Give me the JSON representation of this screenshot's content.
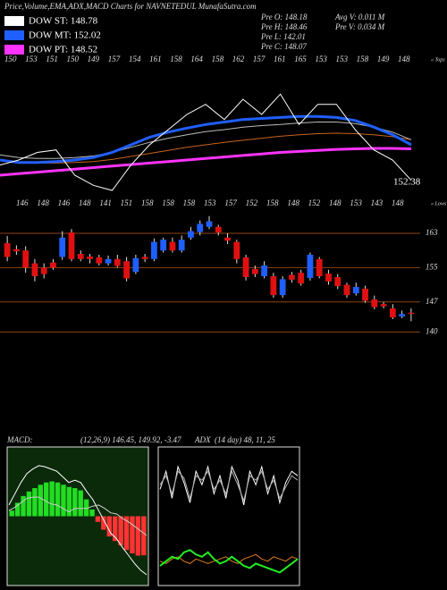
{
  "header": {
    "title": "Price,Volume,EMA,ADX,MACD Charts for NAVNETEDUL MunafaSutra.com",
    "legend": [
      {
        "label": "DOW ST: 148.78",
        "color": "#ffffff"
      },
      {
        "label": "DOW MT: 152.02",
        "color": "#1f5fff"
      },
      {
        "label": "DOW PT: 148.52",
        "color": "#ff33ff"
      }
    ],
    "info_left": [
      "Pre  O: 148.18",
      "Pre  H: 148.46",
      "Pre  L: 142.01",
      "Pre  C: 148.07"
    ],
    "info_right": [
      "Avg V: 0.011  M",
      "Pre  V: 0.034  M"
    ]
  },
  "chart_data": [
    {
      "type": "line",
      "tops": [
        "150",
        "153",
        "151",
        "150",
        "149",
        "157",
        "154",
        "161",
        "158",
        "164",
        "158",
        "162",
        "157",
        "161",
        "165",
        "153",
        "153",
        "158",
        "149",
        "148"
      ],
      "tops_caption": "« Tops",
      "lows": [
        "146",
        "148",
        "146",
        "148",
        "141",
        "151",
        "158",
        "158",
        "158",
        "153",
        "157",
        "152",
        "158",
        "148",
        "152",
        "148",
        "153",
        "143",
        "148"
      ],
      "lows_caption": "« Lows",
      "last_label": "152.38",
      "ylim": [
        140,
        170
      ],
      "series": [
        {
          "color": "#ff33ff",
          "width": 3,
          "values": [
            146,
            146.3,
            146.6,
            146.9,
            147.2,
            147.5,
            147.8,
            148.1,
            148.4,
            148.7,
            149,
            149.3,
            149.6,
            149.9,
            150.2,
            150.5,
            150.7,
            150.9,
            151.1,
            151.2,
            151.3,
            151.3,
            151.2
          ]
        },
        {
          "color": "#c8641e",
          "width": 1,
          "values": [
            149,
            148.6,
            148.4,
            148.4,
            148.5,
            148.7,
            149.1,
            149.7,
            150.3,
            150.9,
            151.5,
            152,
            152.5,
            152.9,
            153.3,
            153.7,
            154,
            154.2,
            154.3,
            154.2,
            154,
            153.6,
            153
          ]
        },
        {
          "color": "#bbbbbb",
          "width": 1,
          "values": [
            150,
            149.5,
            149.3,
            149.3,
            149.5,
            149.8,
            150.5,
            151.5,
            152.5,
            153.3,
            154,
            154.6,
            155,
            155.5,
            155.8,
            156,
            156.3,
            156.5,
            156.5,
            156.2,
            155.5,
            154.5,
            153
          ]
        },
        {
          "color": "#1f5fff",
          "width": 3,
          "values": [
            149,
            148.5,
            148.5,
            148.7,
            149,
            149.5,
            150.5,
            152,
            153.5,
            154.5,
            155.3,
            156,
            156.5,
            157,
            157.2,
            157.4,
            157.6,
            157.6,
            157.4,
            156.8,
            155.5,
            154,
            152
          ]
        },
        {
          "color": "#ffffff",
          "width": 1,
          "values": [
            148,
            149,
            150.5,
            151,
            146,
            144,
            143,
            148,
            152,
            155,
            158,
            160,
            157,
            161,
            158,
            162,
            156,
            160,
            160,
            155,
            151,
            149,
            145
          ]
        }
      ]
    },
    {
      "type": "candlestick",
      "up_color": "#1f5fff",
      "down_color": "#e01010",
      "ylim": [
        136,
        168
      ],
      "yticks": [
        140,
        147,
        155,
        163
      ],
      "grid": true,
      "open": [
        160.7,
        159.3,
        159.0,
        156.0,
        155.0,
        156.2,
        157.5,
        163.2,
        158.2,
        157.6,
        157.4,
        156.0,
        157.0,
        156.5,
        154.0,
        157.5,
        157.0,
        159.0,
        161.0,
        159.0,
        162.0,
        163.3,
        164.5,
        164.5,
        162.0,
        161.0,
        157.4,
        154.7,
        153.0,
        153.0,
        148.6,
        153.3,
        153.8,
        152.6,
        157.0,
        153.6,
        152.8,
        151.0,
        149.0,
        150.1,
        147.6,
        146.5,
        145.5,
        143.6,
        144.5
      ],
      "high": [
        162.4,
        160.2,
        160.0,
        157.0,
        156.0,
        157.0,
        163.5,
        164.0,
        159.0,
        158.2,
        158.0,
        157.8,
        158.0,
        157.5,
        158.0,
        158.2,
        161.8,
        162.0,
        162.0,
        162.5,
        164.5,
        166.0,
        167.0,
        165.0,
        163.0,
        161.5,
        158.0,
        155.5,
        156.5,
        153.8,
        153.0,
        154.0,
        154.5,
        158.5,
        157.5,
        154.5,
        153.5,
        151.5,
        151.5,
        150.8,
        148.5,
        147.0,
        146.5,
        145.0,
        145.5
      ],
      "low": [
        156.5,
        158.0,
        153.8,
        151.8,
        152.5,
        154.5,
        156.8,
        156.5,
        156.5,
        156.0,
        155.5,
        155.5,
        155.0,
        151.8,
        153.5,
        156.3,
        156.5,
        158.5,
        158.5,
        158.5,
        161.5,
        162.5,
        164.0,
        162.5,
        160.5,
        156.0,
        152.0,
        152.8,
        152.5,
        148.0,
        148.0,
        151.5,
        150.8,
        152.0,
        152.5,
        151.0,
        150.0,
        148.0,
        148.5,
        146.8,
        145.3,
        145.5,
        143.0,
        143.2,
        142.5
      ],
      "close": [
        157.5,
        158.8,
        155.0,
        153.0,
        153.5,
        155.0,
        162.0,
        157.0,
        157.0,
        157.0,
        156.0,
        157.0,
        155.4,
        152.5,
        157.2,
        157.0,
        161.0,
        161.5,
        159.0,
        161.5,
        163.5,
        165.2,
        165.8,
        163.2,
        161.3,
        157.0,
        152.8,
        153.5,
        155.5,
        148.6,
        152.3,
        152.2,
        151.3,
        158.0,
        153.0,
        151.8,
        150.7,
        148.6,
        150.5,
        147.3,
        145.8,
        146.0,
        143.4,
        144.2,
        144.2
      ]
    },
    {
      "type": "bar",
      "title": "MACD:",
      "subtitle": "(12,26,9) 146.45, 149.92, -3.47",
      "ylim": [
        -6,
        6
      ],
      "up_color": "#22dd22",
      "down_color": "#ff3333",
      "values": [
        0.5,
        1.2,
        1.8,
        2.2,
        2.5,
        2.8,
        3.0,
        3.1,
        3.0,
        2.8,
        2.6,
        2.5,
        2.3,
        1.5,
        0.6,
        -0.5,
        -1.2,
        -1.8,
        -2.2,
        -2.6,
        -3.0,
        -3.3,
        -3.5,
        -3.47
      ],
      "series": [
        {
          "color": "#ffffff",
          "values": [
            1,
            2,
            3,
            3.8,
            4.2,
            4.5,
            4.4,
            4.2,
            4.0,
            3.5,
            3.0,
            3.2,
            3.0,
            2.2,
            1.5,
            0.5,
            -0.5,
            -1.5,
            -2.0,
            -2.8,
            -3.5,
            -4.2,
            -4.8,
            -5.2
          ]
        },
        {
          "color": "#cccccc",
          "values": [
            0.5,
            0.8,
            1.2,
            1.6,
            1.7,
            1.7,
            1.4,
            1.1,
            1.0,
            0.7,
            0.4,
            0.7,
            0.7,
            0.7,
            0.9,
            1.0,
            0.7,
            0.3,
            0.2,
            -0.2,
            -0.5,
            -0.9,
            -1.3,
            -1.7
          ]
        }
      ]
    },
    {
      "type": "line",
      "title": "ADX",
      "subtitle": "(14  day) 48, 11, 25",
      "ylim": [
        0,
        60
      ],
      "series": [
        {
          "color": "#ffffff",
          "width": 1,
          "values": [
            42,
            50,
            38,
            52,
            45,
            36,
            50,
            44,
            52,
            40,
            48,
            38,
            52,
            46,
            35,
            50,
            44,
            52,
            40,
            48,
            36,
            45,
            50,
            48
          ]
        },
        {
          "color": "#aaaaaa",
          "width": 1,
          "values": [
            44,
            48,
            40,
            50,
            47,
            38,
            48,
            46,
            50,
            42,
            46,
            40,
            50,
            44,
            37,
            48,
            46,
            50,
            42,
            46,
            38,
            43,
            48,
            46
          ]
        },
        {
          "color": "#e07b20",
          "width": 1,
          "values": [
            10,
            9,
            11,
            12,
            10,
            9,
            11,
            10,
            9,
            10,
            11,
            12,
            10,
            9,
            11,
            12,
            13,
            11,
            10,
            12,
            11,
            10,
            12,
            11
          ]
        },
        {
          "color": "#22ee22",
          "width": 2,
          "values": [
            8,
            10,
            12,
            11,
            14,
            15,
            13,
            12,
            14,
            11,
            9,
            10,
            12,
            10,
            8,
            7,
            9,
            8,
            7,
            6,
            5,
            7,
            9,
            11
          ]
        }
      ]
    }
  ]
}
